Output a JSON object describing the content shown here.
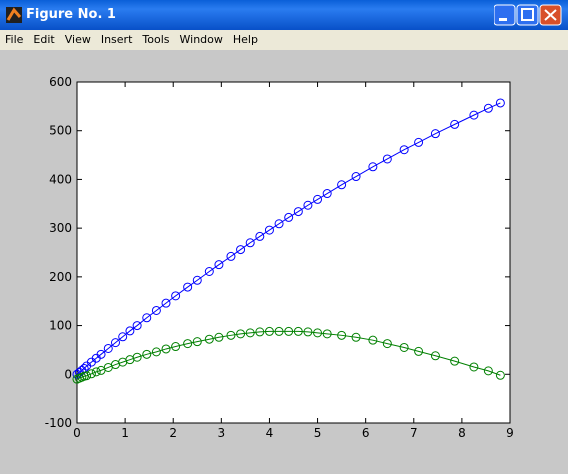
{
  "window": {
    "title": "Figure No. 1",
    "menu": [
      "File",
      "Edit",
      "View",
      "Insert",
      "Tools",
      "Window",
      "Help"
    ]
  },
  "chart_data": {
    "type": "line",
    "marker": "circle",
    "x": [
      0,
      0.05,
      0.1,
      0.15,
      0.2,
      0.3,
      0.4,
      0.5,
      0.65,
      0.8,
      0.95,
      1.1,
      1.25,
      1.45,
      1.65,
      1.85,
      2.05,
      2.3,
      2.5,
      2.75,
      2.95,
      3.2,
      3.4,
      3.6,
      3.8,
      4.0,
      4.2,
      4.4,
      4.6,
      4.8,
      5.0,
      5.2,
      5.5,
      5.8,
      6.15,
      6.45,
      6.8,
      7.1,
      7.45,
      7.85,
      8.25,
      8.55,
      8.8
    ],
    "series": [
      {
        "color": "#0000ff",
        "values": [
          0,
          4,
          8,
          12,
          17,
          25,
          33,
          41,
          53,
          65,
          77,
          89,
          100,
          116,
          131,
          146,
          161,
          179,
          193,
          211,
          225,
          242,
          256,
          270,
          283,
          296,
          309,
          322,
          334,
          347,
          359,
          371,
          389,
          406,
          426,
          442,
          461,
          476,
          494,
          513,
          532,
          546,
          557
        ]
      },
      {
        "color": "#008000",
        "values": [
          -10,
          -8,
          -6,
          -4,
          -3,
          1,
          5,
          8,
          14,
          20,
          25,
          30,
          35,
          41,
          46,
          52,
          57,
          63,
          67,
          72,
          76,
          80,
          83,
          85,
          87,
          88,
          88,
          88,
          88,
          87,
          85,
          83,
          80,
          76,
          70,
          63,
          55,
          47,
          38,
          27,
          15,
          7,
          -2
        ]
      }
    ],
    "xlim": [
      0,
      9
    ],
    "ylim": [
      -100,
      600
    ],
    "xticks": [
      0,
      1,
      2,
      3,
      4,
      5,
      6,
      7,
      8,
      9
    ],
    "yticks": [
      -100,
      0,
      100,
      200,
      300,
      400,
      500,
      600
    ]
  }
}
